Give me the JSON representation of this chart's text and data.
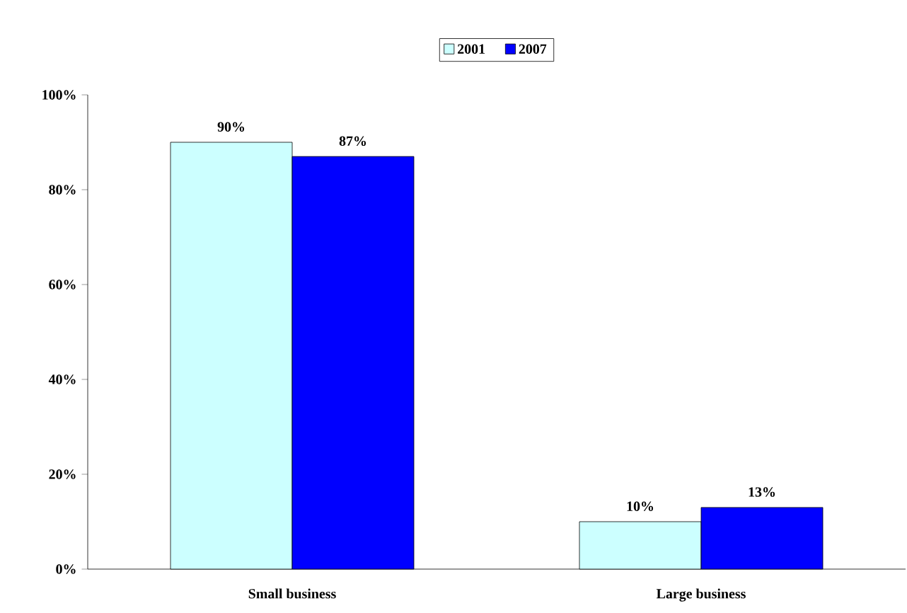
{
  "chart_data": {
    "type": "bar",
    "categories": [
      "Small business",
      "Large business"
    ],
    "series": [
      {
        "name": "2001",
        "color": "#ccffff",
        "values": [
          90,
          10
        ],
        "value_labels": [
          "90%",
          "10%"
        ]
      },
      {
        "name": "2007",
        "color": "#0000ff",
        "values": [
          87,
          13
        ],
        "value_labels": [
          "87%",
          "13%"
        ]
      }
    ],
    "ylim": [
      0,
      100
    ],
    "yticks": [
      {
        "value": 0,
        "label": "0%"
      },
      {
        "value": 20,
        "label": "20%"
      },
      {
        "value": 40,
        "label": "40%"
      },
      {
        "value": 60,
        "label": "60%"
      },
      {
        "value": 80,
        "label": "80%"
      },
      {
        "value": 100,
        "label": "100%"
      }
    ],
    "legend": "top",
    "grid": false
  }
}
